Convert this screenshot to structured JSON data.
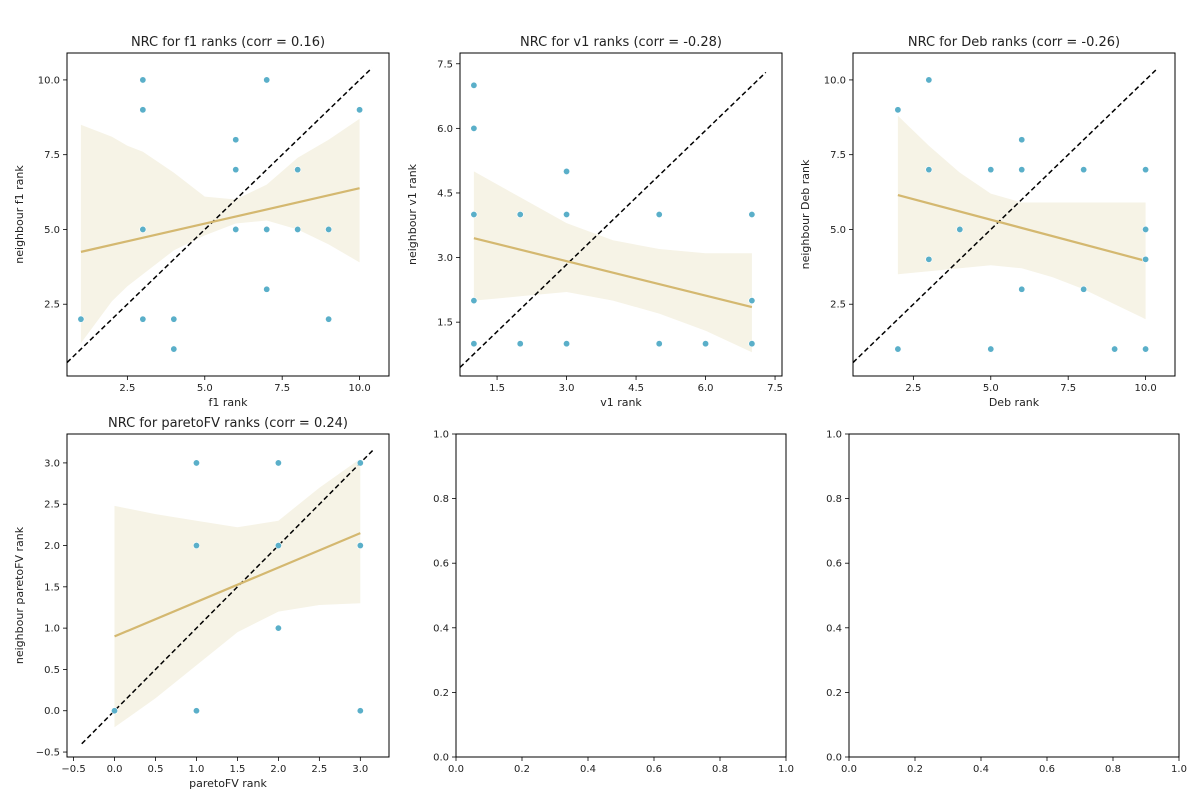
{
  "chart_data": [
    {
      "type": "scatter",
      "title": "NRC for f1 ranks (corr = 0.16)",
      "xlabel": "f1 rank",
      "ylabel": "neighbour f1 rank",
      "xlim": [
        0.55,
        10.95
      ],
      "ylim": [
        0.1,
        10.9
      ],
      "xticks": [
        2.5,
        5.0,
        7.5,
        10.0
      ],
      "xtick_labels": [
        "2.5",
        "5.0",
        "7.5",
        "10.0"
      ],
      "yticks": [
        2.5,
        5.0,
        7.5,
        10.0
      ],
      "ytick_labels": [
        "2.5",
        "5.0",
        "7.5",
        "10.0"
      ],
      "points": [
        [
          1,
          2
        ],
        [
          3,
          10
        ],
        [
          3,
          9
        ],
        [
          3,
          5
        ],
        [
          3,
          2
        ],
        [
          4,
          2
        ],
        [
          4,
          1
        ],
        [
          6,
          8
        ],
        [
          6,
          7
        ],
        [
          6,
          5
        ],
        [
          7,
          10
        ],
        [
          7,
          5
        ],
        [
          7,
          3
        ],
        [
          8,
          7
        ],
        [
          8,
          5
        ],
        [
          9,
          5
        ],
        [
          9,
          2
        ],
        [
          10,
          9
        ]
      ],
      "regression": {
        "x": [
          1,
          10
        ],
        "y": [
          4.25,
          6.38
        ],
        "band_x": [
          1,
          1.5,
          2,
          2.5,
          3,
          4,
          5,
          6,
          7,
          8,
          9,
          10
        ],
        "band_lower": [
          1.2,
          1.9,
          2.6,
          3.1,
          3.5,
          4.3,
          4.8,
          5.2,
          5.3,
          5.0,
          4.5,
          3.9
        ],
        "band_upper": [
          8.5,
          8.3,
          8.1,
          7.8,
          7.6,
          6.9,
          6.1,
          6.0,
          6.5,
          7.4,
          8.0,
          8.7
        ]
      },
      "identity_line": {
        "x": [
          0.55,
          10.4
        ],
        "y": [
          0.55,
          10.4
        ]
      },
      "grid": false
    },
    {
      "type": "scatter",
      "title": "NRC for v1 ranks (corr = -0.28)",
      "xlabel": "v1 rank",
      "ylabel": "neighbour v1 rank",
      "xlim": [
        0.7,
        7.65
      ],
      "ylim": [
        0.25,
        7.75
      ],
      "xticks": [
        1.5,
        3.0,
        4.5,
        6.0,
        7.5
      ],
      "xtick_labels": [
        "1.5",
        "3.0",
        "4.5",
        "6.0",
        "7.5"
      ],
      "yticks": [
        1.5,
        3.0,
        4.5,
        6.0,
        7.5
      ],
      "ytick_labels": [
        "1.5",
        "3.0",
        "4.5",
        "6.0",
        "7.5"
      ],
      "points": [
        [
          1,
          7
        ],
        [
          1,
          6
        ],
        [
          1,
          4
        ],
        [
          1,
          2
        ],
        [
          1,
          1
        ],
        [
          2,
          4
        ],
        [
          2,
          1
        ],
        [
          3,
          5
        ],
        [
          3,
          4
        ],
        [
          3,
          1
        ],
        [
          5,
          4
        ],
        [
          5,
          1
        ],
        [
          6,
          1
        ],
        [
          7,
          4
        ],
        [
          7,
          2
        ],
        [
          7,
          1
        ]
      ],
      "regression": {
        "x": [
          1,
          7
        ],
        "y": [
          3.45,
          1.85
        ],
        "band_x": [
          1,
          1.5,
          2,
          3,
          4,
          5,
          6,
          7
        ],
        "band_lower": [
          2.0,
          2.05,
          2.1,
          2.2,
          2.0,
          1.7,
          1.3,
          0.8
        ],
        "band_upper": [
          5.0,
          4.7,
          4.4,
          3.8,
          3.4,
          3.2,
          3.1,
          3.1
        ]
      },
      "identity_line": {
        "x": [
          0.7,
          7.3
        ],
        "y": [
          0.45,
          7.3
        ]
      },
      "grid": false
    },
    {
      "type": "scatter",
      "title": "NRC for Deb ranks (corr = -0.26)",
      "xlabel": "Deb rank",
      "ylabel": "neighbour Deb rank",
      "xlim": [
        0.55,
        10.95
      ],
      "ylim": [
        0.1,
        10.9
      ],
      "xticks": [
        2.5,
        5.0,
        7.5,
        10.0
      ],
      "xtick_labels": [
        "2.5",
        "5.0",
        "7.5",
        "10.0"
      ],
      "yticks": [
        2.5,
        5.0,
        7.5,
        10.0
      ],
      "ytick_labels": [
        "2.5",
        "5.0",
        "7.5",
        "10.0"
      ],
      "points": [
        [
          2,
          9
        ],
        [
          2,
          1
        ],
        [
          3,
          10
        ],
        [
          3,
          7
        ],
        [
          3,
          4
        ],
        [
          4,
          5
        ],
        [
          5,
          7
        ],
        [
          5,
          1
        ],
        [
          6,
          8
        ],
        [
          6,
          7
        ],
        [
          6,
          3
        ],
        [
          8,
          7
        ],
        [
          8,
          3
        ],
        [
          9,
          1
        ],
        [
          10,
          7
        ],
        [
          10,
          5
        ],
        [
          10,
          4
        ],
        [
          10,
          1
        ]
      ],
      "regression": {
        "x": [
          2,
          10
        ],
        "y": [
          6.15,
          3.95
        ],
        "band_x": [
          2,
          2.5,
          3,
          4,
          5,
          6,
          7,
          8,
          9,
          10
        ],
        "band_lower": [
          3.5,
          3.55,
          3.6,
          3.7,
          3.8,
          3.7,
          3.4,
          3.0,
          2.5,
          2.0
        ],
        "band_upper": [
          8.8,
          8.3,
          7.8,
          6.9,
          6.2,
          5.9,
          5.9,
          5.9,
          5.9,
          5.9
        ]
      },
      "identity_line": {
        "x": [
          0.55,
          10.4
        ],
        "y": [
          0.55,
          10.4
        ]
      },
      "grid": false
    },
    {
      "type": "scatter",
      "title": "NRC for paretoFV ranks (corr = 0.24)",
      "xlabel": "paretoFV rank",
      "ylabel": "neighbour paretoFV rank",
      "xlim": [
        -0.58,
        3.35
      ],
      "ylim": [
        -0.56,
        3.35
      ],
      "xticks": [
        -0.5,
        0.0,
        0.5,
        1.0,
        1.5,
        2.0,
        2.5,
        3.0
      ],
      "xtick_labels": [
        "−0.5",
        "0.0",
        "0.5",
        "1.0",
        "1.5",
        "2.0",
        "2.5",
        "3.0"
      ],
      "yticks": [
        -0.5,
        0.0,
        0.5,
        1.0,
        1.5,
        2.0,
        2.5,
        3.0
      ],
      "ytick_labels": [
        "−0.5",
        "0.0",
        "0.5",
        "1.0",
        "1.5",
        "2.0",
        "2.5",
        "3.0"
      ],
      "points": [
        [
          0,
          0
        ],
        [
          1,
          3
        ],
        [
          1,
          2
        ],
        [
          1,
          0
        ],
        [
          2,
          3
        ],
        [
          2,
          2
        ],
        [
          2,
          1
        ],
        [
          3,
          3
        ],
        [
          3,
          2
        ],
        [
          3,
          0
        ]
      ],
      "regression": {
        "x": [
          0,
          3
        ],
        "y": [
          0.9,
          2.15
        ],
        "band_x": [
          0,
          0.5,
          1,
          1.5,
          2,
          2.5,
          3
        ],
        "band_lower": [
          -0.2,
          0.15,
          0.55,
          0.95,
          1.2,
          1.28,
          1.3
        ],
        "band_upper": [
          2.48,
          2.38,
          2.3,
          2.22,
          2.3,
          2.7,
          3.05
        ]
      },
      "identity_line": {
        "x": [
          -0.4,
          3.15
        ],
        "y": [
          -0.4,
          3.15
        ]
      },
      "grid": false
    },
    {
      "type": "scatter",
      "title": "",
      "xlabel": "",
      "ylabel": "",
      "xlim": [
        0,
        1
      ],
      "ylim": [
        0,
        1
      ],
      "xticks": [
        0.0,
        0.2,
        0.4,
        0.6,
        0.8,
        1.0
      ],
      "xtick_labels": [
        "0.0",
        "0.2",
        "0.4",
        "0.6",
        "0.8",
        "1.0"
      ],
      "yticks": [
        0.0,
        0.2,
        0.4,
        0.6,
        0.8,
        1.0
      ],
      "ytick_labels": [
        "0.0",
        "0.2",
        "0.4",
        "0.6",
        "0.8",
        "1.0"
      ],
      "points": [],
      "grid": false
    },
    {
      "type": "scatter",
      "title": "",
      "xlabel": "",
      "ylabel": "",
      "xlim": [
        0,
        1
      ],
      "ylim": [
        0,
        1
      ],
      "xticks": [
        0.0,
        0.2,
        0.4,
        0.6,
        0.8,
        1.0
      ],
      "xtick_labels": [
        "0.0",
        "0.2",
        "0.4",
        "0.6",
        "0.8",
        "1.0"
      ],
      "yticks": [
        0.0,
        0.2,
        0.4,
        0.6,
        0.8,
        1.0
      ],
      "ytick_labels": [
        "0.0",
        "0.2",
        "0.4",
        "0.6",
        "0.8",
        "1.0"
      ],
      "points": [],
      "grid": false
    }
  ],
  "colors": {
    "point": "#5aafc9",
    "regression": "#d4b870",
    "band": "#f6f3e6",
    "identity": "#000000"
  }
}
